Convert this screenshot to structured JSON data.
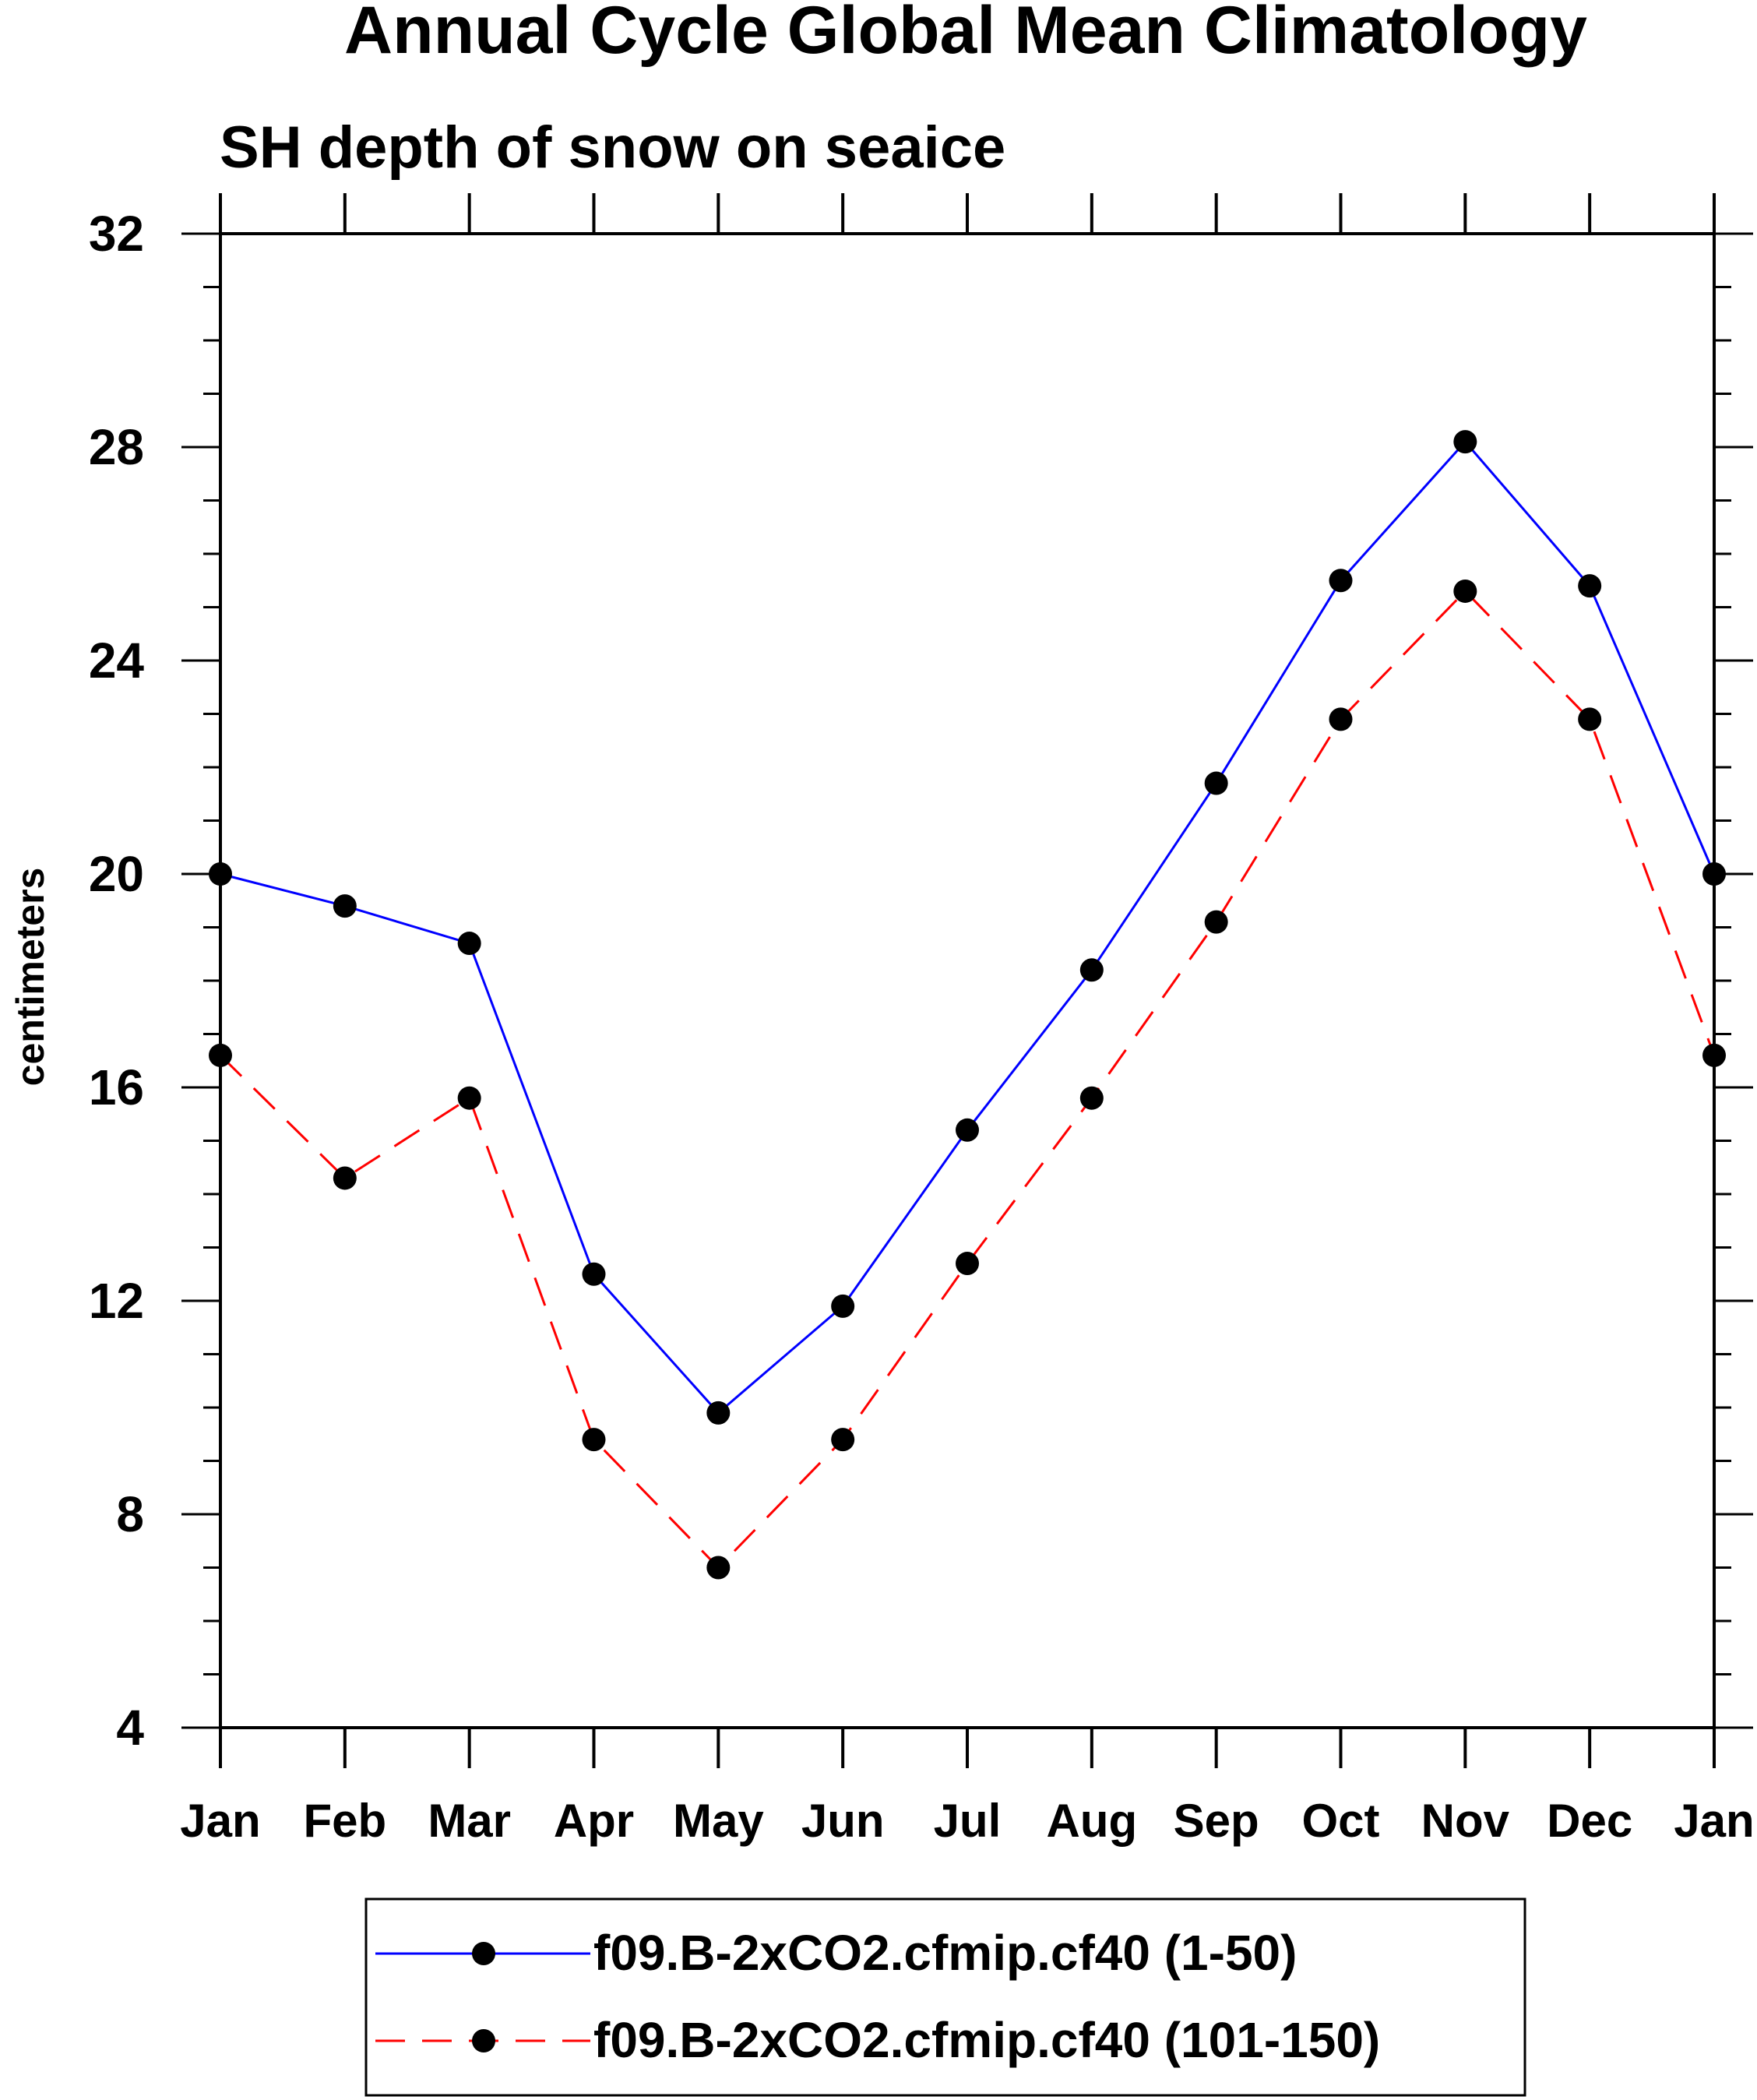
{
  "chart_data": {
    "type": "line",
    "title": "Annual Cycle Global Mean Climatology",
    "subtitle": "SH depth of snow on seaice",
    "xlabel": "",
    "ylabel": "centimeters",
    "categories": [
      "Jan",
      "Feb",
      "Mar",
      "Apr",
      "May",
      "Jun",
      "Jul",
      "Aug",
      "Sep",
      "Oct",
      "Nov",
      "Dec",
      "Jan"
    ],
    "ylim": [
      4,
      32
    ],
    "yticks": [
      4,
      8,
      12,
      16,
      20,
      24,
      28,
      32
    ],
    "grid": false,
    "legend_position": "bottom",
    "series": [
      {
        "name": "f09.B-2xCO2.cfmip.cf40 (1-50)",
        "color": "#0000ff",
        "line_style": "solid",
        "marker": "filled-circle",
        "values": [
          20.0,
          19.4,
          18.7,
          12.5,
          9.9,
          11.9,
          15.2,
          18.2,
          21.7,
          25.5,
          28.1,
          25.4,
          20.0
        ]
      },
      {
        "name": "f09.B-2xCO2.cfmip.cf40 (101-150)",
        "color": "#ff0000",
        "line_style": "dashed",
        "marker": "filled-circle",
        "values": [
          16.6,
          14.3,
          15.8,
          9.4,
          7.0,
          9.4,
          12.7,
          15.8,
          19.1,
          22.9,
          25.3,
          22.9,
          16.6
        ]
      }
    ]
  }
}
